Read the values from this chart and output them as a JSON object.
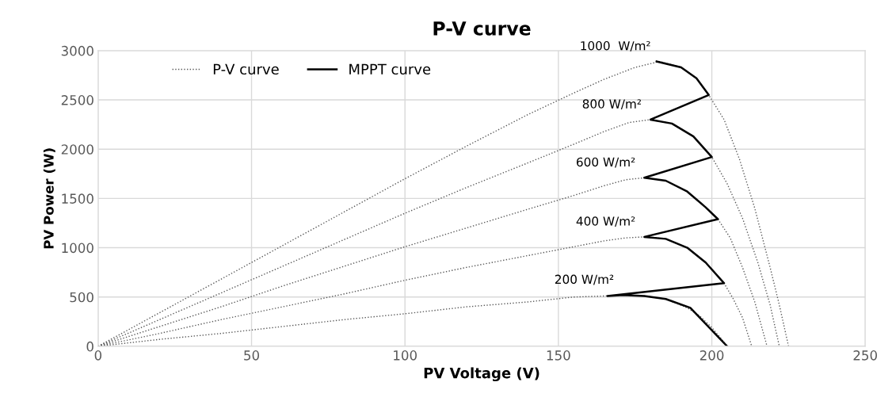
{
  "chart_data": {
    "type": "line",
    "title": "P-V curve",
    "xlabel": "PV Voltage (V)",
    "ylabel": "PV Power (W)",
    "xlim": [
      0,
      250
    ],
    "xticks": [
      0,
      50,
      100,
      150,
      200,
      250
    ],
    "ylim": [
      0,
      3000
    ],
    "yticks": [
      0,
      500,
      1000,
      1500,
      2000,
      2500,
      3000
    ],
    "grid": true,
    "legend": "top left",
    "series": [
      {
        "name": "P-V curve",
        "line_style": "dotted",
        "color": "#595959",
        "x": [
          0,
          20,
          40,
          60,
          80,
          100,
          120,
          140,
          155,
          165,
          175,
          183,
          190,
          195,
          199,
          204,
          209,
          214,
          219,
          222,
          225
        ],
        "values": [
          0,
          340,
          680,
          1020,
          1360,
          1700,
          2030,
          2350,
          2570,
          2710,
          2830,
          2890,
          2830,
          2720,
          2550,
          2300,
          1900,
          1400,
          800,
          420,
          0
        ]
      },
      {
        "line_style": "dotted",
        "color": "#595959",
        "x": [
          0,
          20,
          40,
          60,
          80,
          100,
          120,
          140,
          155,
          165,
          173,
          180,
          187,
          194,
          200,
          205,
          210,
          215,
          219,
          222
        ],
        "values": [
          0,
          270,
          540,
          810,
          1080,
          1350,
          1610,
          1860,
          2050,
          2180,
          2270,
          2300,
          2260,
          2130,
          1920,
          1650,
          1300,
          850,
          420,
          0
        ]
      },
      {
        "line_style": "dotted",
        "color": "#595959",
        "x": [
          0,
          20,
          40,
          60,
          80,
          100,
          120,
          140,
          155,
          165,
          172,
          178,
          185,
          192,
          198,
          202,
          206,
          210,
          214,
          218
        ],
        "values": [
          0,
          200,
          400,
          610,
          810,
          1010,
          1200,
          1390,
          1530,
          1630,
          1690,
          1710,
          1680,
          1570,
          1410,
          1290,
          1100,
          800,
          450,
          0
        ]
      },
      {
        "line_style": "dotted",
        "color": "#595959",
        "x": [
          0,
          20,
          40,
          60,
          80,
          100,
          120,
          140,
          155,
          165,
          172,
          178,
          185,
          192,
          198,
          204,
          207,
          210,
          213
        ],
        "values": [
          0,
          130,
          270,
          400,
          530,
          670,
          800,
          920,
          1010,
          1070,
          1100,
          1110,
          1090,
          1000,
          850,
          640,
          480,
          290,
          0
        ]
      },
      {
        "line_style": "dotted",
        "color": "#595959",
        "x": [
          0,
          20,
          40,
          60,
          80,
          100,
          120,
          140,
          155,
          165,
          171,
          178,
          185,
          192,
          196,
          200,
          203,
          205
        ],
        "values": [
          0,
          70,
          130,
          200,
          270,
          330,
          400,
          450,
          500,
          510,
          520,
          510,
          480,
          390,
          310,
          190,
          80,
          0
        ]
      },
      {
        "name": "MPPT curve",
        "line_style": "solid",
        "color": "#000000",
        "x": [
          205,
          193,
          185,
          178,
          171,
          166,
          204,
          198,
          192,
          185,
          178,
          202,
          198,
          192,
          185,
          178,
          200,
          194,
          187,
          180,
          199,
          195,
          190,
          182
        ],
        "values": [
          0,
          390,
          480,
          510,
          520,
          510,
          640,
          850,
          1000,
          1090,
          1110,
          1290,
          1410,
          1570,
          1680,
          1710,
          1920,
          2130,
          2260,
          2300,
          2550,
          2720,
          2830,
          2890
        ]
      }
    ],
    "annotations": [
      {
        "text": "1000  W/m²",
        "x": 183,
        "y": 2890
      },
      {
        "text": "800 W/m²",
        "x": 180,
        "y": 2300
      },
      {
        "text": "600 W/m²",
        "x": 178,
        "y": 1710
      },
      {
        "text": "400 W/m²",
        "x": 178,
        "y": 1110
      },
      {
        "text": "200 W/m²",
        "x": 171,
        "y": 520
      }
    ]
  }
}
